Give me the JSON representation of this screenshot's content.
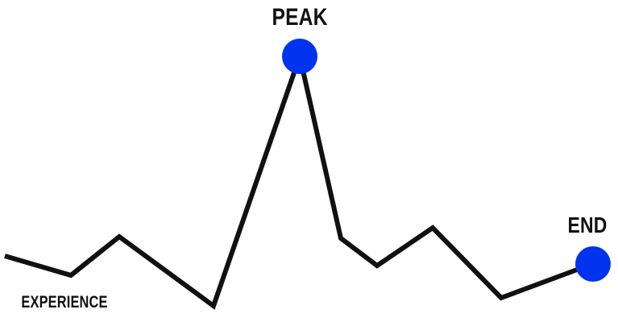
{
  "labels": {
    "peak": "PEAK",
    "end": "END",
    "experience": "EXPERIENCE"
  },
  "colors": {
    "line": "#111111",
    "marker": "#0033ee",
    "text": "#111111",
    "background": "#ffffff"
  }
}
